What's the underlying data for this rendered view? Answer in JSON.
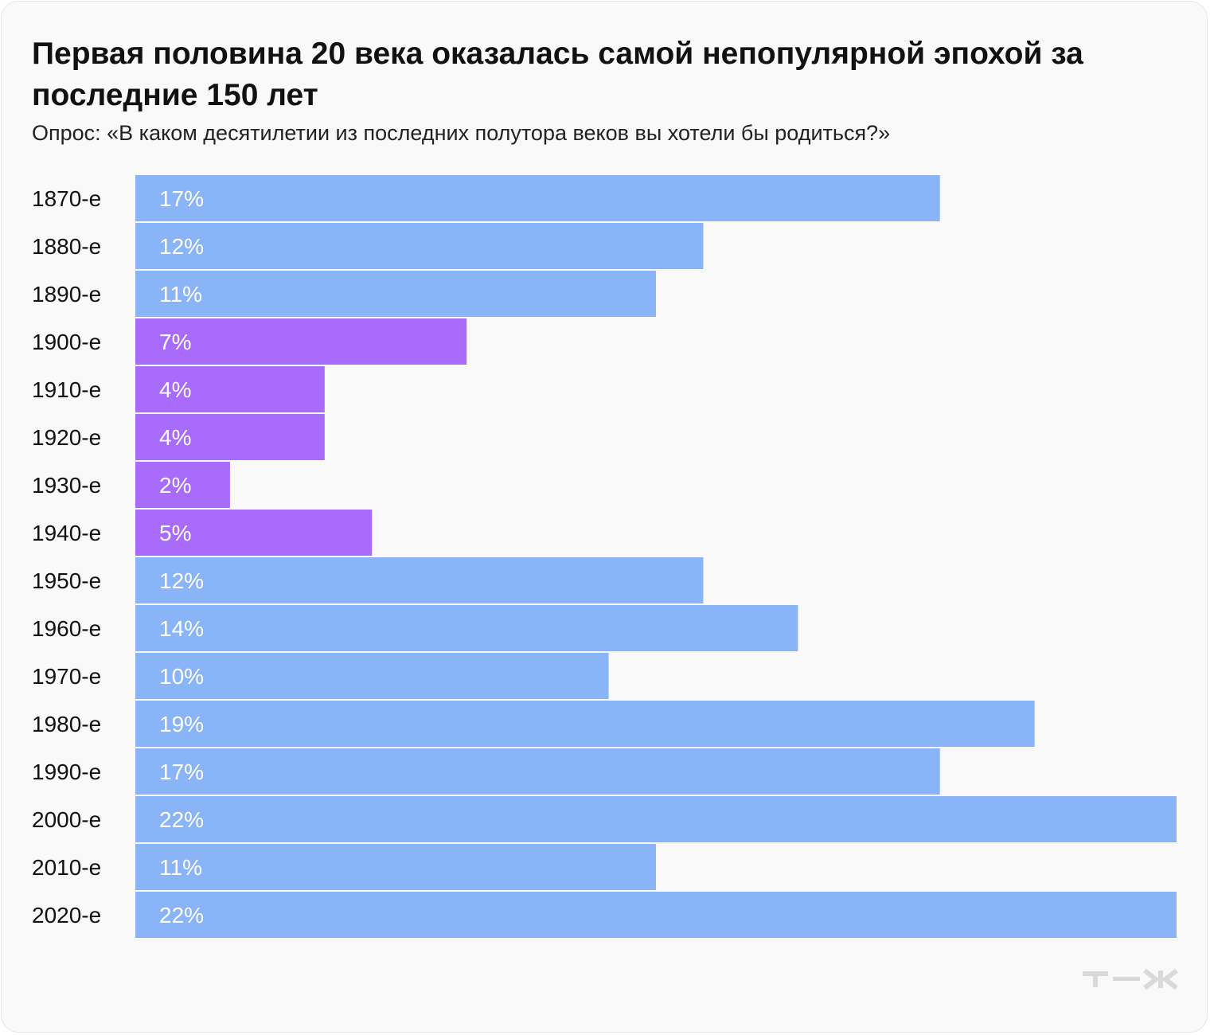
{
  "title": "Первая половина 20 века оказалась самой непопулярной эпохой за последние 150 лет",
  "subtitle": "Опрос: «В каком десятилетии из последних полутора веков вы хотели бы родиться?»",
  "logo": "т—ж",
  "colors": {
    "default": "#8ab4f8",
    "highlight": "#a96bfb",
    "background": "#f9f9f9"
  },
  "chart_data": {
    "type": "bar",
    "orientation": "horizontal",
    "title": "Первая половина 20 века оказалась самой непопулярной эпохой за последние 150 лет",
    "subtitle": "Опрос: «В каком десятилетии из последних полутора веков вы хотели бы родиться?»",
    "categories": [
      "1870-е",
      "1880-е",
      "1890-е",
      "1900-е",
      "1910-е",
      "1920-е",
      "1930-е",
      "1940-е",
      "1950-е",
      "1960-е",
      "1970-е",
      "1980-е",
      "1990-е",
      "2000-е",
      "2010-е",
      "2020-е"
    ],
    "values": [
      17,
      12,
      11,
      7,
      4,
      4,
      2,
      5,
      12,
      14,
      10,
      19,
      17,
      22,
      11,
      22
    ],
    "labels": [
      "17%",
      "12%",
      "11%",
      "7%",
      "4%",
      "4%",
      "2%",
      "5%",
      "12%",
      "14%",
      "10%",
      "19%",
      "17%",
      "22%",
      "11%",
      "22%"
    ],
    "highlighted": [
      "1900-е",
      "1910-е",
      "1920-е",
      "1930-е",
      "1940-е"
    ],
    "unit": "%",
    "xlim": [
      0,
      22
    ],
    "grid": false,
    "legend": "none"
  }
}
